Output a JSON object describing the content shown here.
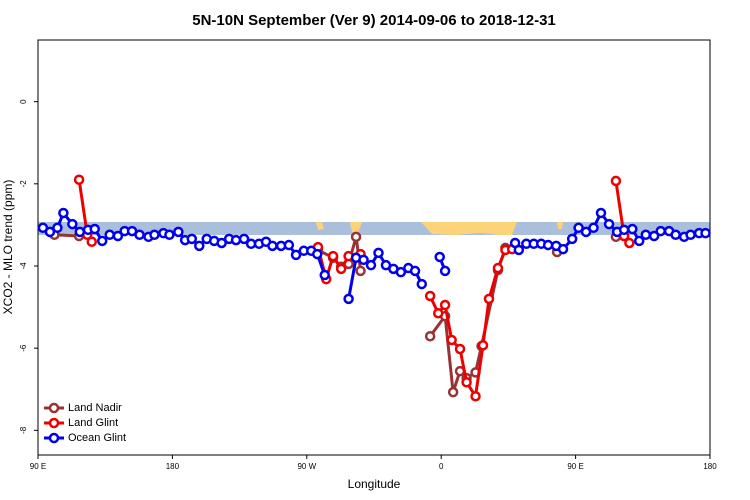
{
  "chart_data": {
    "type": "line",
    "title": "5N-10N September (Ver 9)   2014-09-06 to 2018-12-31",
    "x_label": "Longitude",
    "y_label": "XCO2 - MLO trend (ppm)",
    "xlim": [
      90,
      540
    ],
    "ylim": [
      -8.6,
      1.5
    ],
    "xticks": [
      {
        "value": 90,
        "label": "90 E"
      },
      {
        "value": 180,
        "label": "180"
      },
      {
        "value": 270,
        "label": "90 W"
      },
      {
        "value": 360,
        "label": "0"
      },
      {
        "value": 450,
        "label": "90 E"
      },
      {
        "value": 540,
        "label": "180"
      }
    ],
    "yticks": [
      0,
      -2,
      -4,
      -6,
      -8
    ],
    "legend": "bottom-left",
    "series": [
      {
        "name": "Land Nadir",
        "color": "#993333",
        "x": [
          101,
          117.5,
          null,
          277.5,
          287.6,
          293,
          298,
          303,
          306,
          null,
          352.6,
          362.6,
          368,
          372.6,
          377,
          383,
          387,
          398,
          403,
          null,
          437.6,
          null,
          477,
          482.5
        ],
        "values": [
          -3.24,
          -3.27,
          null,
          -3.61,
          -3.8,
          -4.02,
          -3.95,
          -3.29,
          -4.12,
          null,
          -5.71,
          -5.22,
          -7.07,
          -6.56,
          -6.73,
          -6.59,
          -5.95,
          -4.1,
          -3.56,
          null,
          -3.66,
          null,
          -3.29,
          -3.27
        ]
      },
      {
        "name": "Land Glint",
        "color": "#ee0000",
        "x": [
          117.5,
          123,
          126,
          null,
          277.5,
          283,
          287.6,
          293,
          298,
          306,
          null,
          352.6,
          358,
          362.6,
          367,
          372.6,
          377,
          383,
          388,
          392,
          398,
          403,
          407.5,
          null,
          477,
          482.5,
          486
        ],
        "values": [
          -1.9,
          -3.24,
          -3.41,
          null,
          -3.54,
          -4.32,
          -3.76,
          -4.07,
          -3.76,
          -3.71,
          null,
          -4.73,
          -5.15,
          -4.95,
          -5.8,
          -6.02,
          -6.83,
          -7.17,
          -5.93,
          -4.8,
          -4.05,
          -3.61,
          -3.59,
          null,
          -1.93,
          -3.27,
          -3.44
        ]
      },
      {
        "name": "Ocean Glint",
        "color": "#0000ee",
        "x": [
          93.3,
          98,
          103,
          107,
          113,
          118,
          123.5,
          128,
          133,
          138,
          143.5,
          148,
          153,
          158,
          164,
          168,
          174,
          178,
          184,
          188.5,
          193,
          198,
          203,
          208,
          213,
          218,
          222.6,
          228,
          232.7,
          238,
          242.7,
          247,
          252.8,
          258,
          262.8,
          268,
          273,
          277,
          282,
          null,
          298,
          303,
          308,
          313,
          318,
          323,
          328,
          333,
          338,
          342.5,
          347,
          null,
          359,
          362.6,
          null,
          409.5,
          412,
          417,
          422,
          427,
          431.6,
          437,
          441.6,
          447.7,
          452,
          457,
          462,
          467,
          472.4,
          477.8,
          482.5,
          488,
          492.6,
          497,
          502.6,
          507,
          512.6,
          517,
          522.7,
          527,
          532.7,
          537
        ],
        "values": [
          -3.07,
          -3.17,
          -3.07,
          -2.71,
          -2.98,
          -3.17,
          -3.12,
          -3.1,
          -3.39,
          -3.24,
          -3.27,
          -3.15,
          -3.15,
          -3.24,
          -3.29,
          -3.24,
          -3.2,
          -3.24,
          -3.17,
          -3.37,
          -3.34,
          -3.51,
          -3.34,
          -3.39,
          -3.44,
          -3.34,
          -3.37,
          -3.34,
          -3.46,
          -3.46,
          -3.41,
          -3.51,
          -3.51,
          -3.49,
          -3.73,
          -3.63,
          -3.63,
          -3.71,
          -4.22,
          null,
          -4.8,
          -3.8,
          -3.85,
          -3.98,
          -3.68,
          -3.98,
          -4.07,
          -4.15,
          -4.05,
          -4.12,
          -4.44,
          null,
          -3.78,
          -4.12,
          null,
          -3.44,
          -3.61,
          -3.46,
          -3.46,
          -3.46,
          -3.49,
          -3.51,
          -3.59,
          -3.34,
          -3.07,
          -3.17,
          -3.07,
          -2.71,
          -2.98,
          -3.17,
          -3.12,
          -3.1,
          -3.39,
          -3.24,
          -3.27,
          -3.15,
          -3.15,
          -3.24,
          -3.29,
          -3.24,
          -3.2,
          -3.2
        ]
      }
    ]
  }
}
